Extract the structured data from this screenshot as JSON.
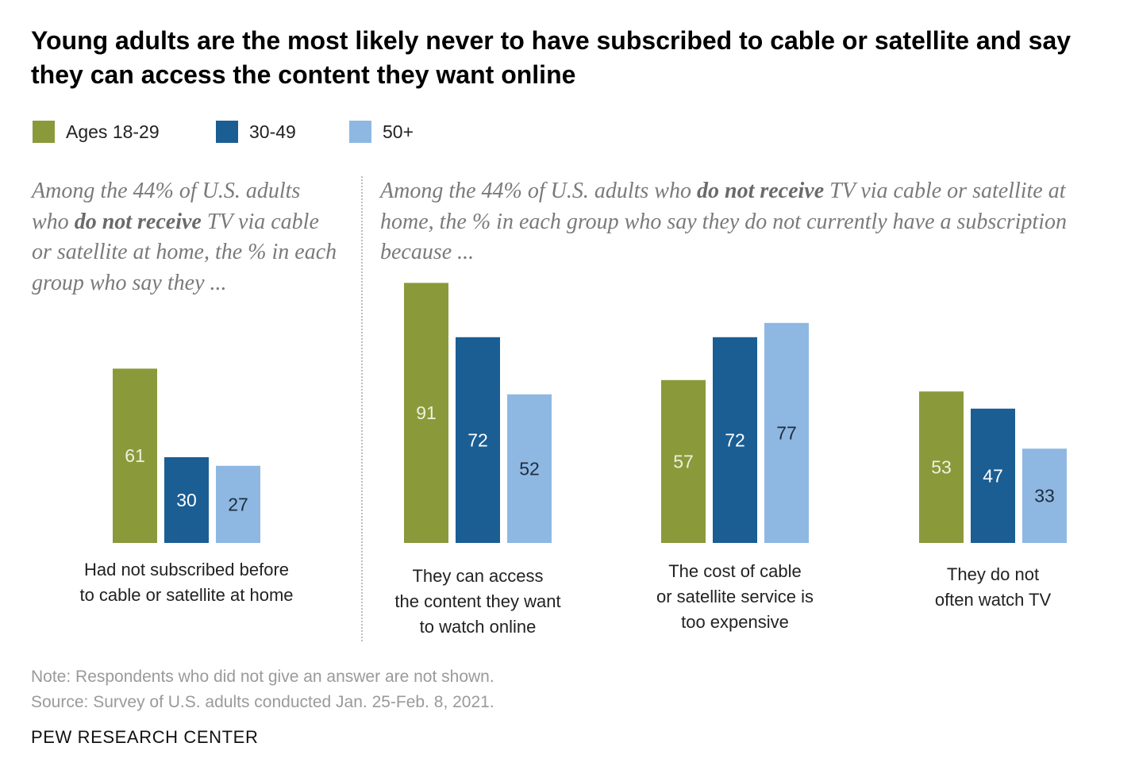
{
  "title": "Young adults are the most likely never to have subscribed to cable or satellite and say they can access the content they want online",
  "legend": [
    {
      "label": "Ages 18-29",
      "color": "#8a9a3b"
    },
    {
      "label": "30-49",
      "color": "#1a5e94"
    },
    {
      "label": "50+",
      "color": "#8eb8e2"
    }
  ],
  "subheads": {
    "left": {
      "pre": "Among the 44% of U.S. adults who ",
      "bold": "do not receive",
      "post": " TV via cable or satellite at home, the % in each group who say they ..."
    },
    "right": {
      "pre": "Among the 44% of U.S. adults who ",
      "bold": "do not receive",
      "post": " TV via cable or satellite at home, the % in each group who say they do not currently have a subscription because ..."
    }
  },
  "chart_data": {
    "type": "bar",
    "series": [
      {
        "name": "Ages 18-29",
        "color": "#8a9a3b",
        "values": [
          61,
          91,
          57,
          53
        ]
      },
      {
        "name": "30-49",
        "color": "#1a5e94",
        "values": [
          30,
          72,
          72,
          47
        ]
      },
      {
        "name": "50+",
        "color": "#8eb8e2",
        "values": [
          27,
          52,
          77,
          33
        ]
      }
    ],
    "categories": [
      [
        "Had not subscribed before",
        "to cable or satellite at home"
      ],
      [
        "They can access",
        "the content they want",
        "to watch online"
      ],
      [
        "The cost of cable",
        "or satellite service is",
        "too expensive"
      ],
      [
        "They do not",
        "often watch TV"
      ]
    ],
    "label_colors": {
      "Ages 18-29": "#eef0dd",
      "30-49": "#ffffff",
      "50+": "#1f2d3d"
    },
    "ylim": [
      0,
      100
    ]
  },
  "note": "Note: Respondents who did not give an answer are not shown.",
  "source": "Source: Survey of U.S. adults conducted Jan. 25-Feb. 8, 2021.",
  "brand": "PEW RESEARCH CENTER"
}
